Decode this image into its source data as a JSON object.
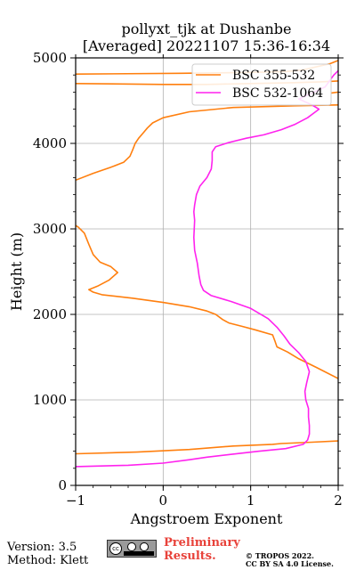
{
  "chart_data": {
    "type": "line",
    "title": [
      "pollyxt_tjk at Dushanbe",
      "[Averaged] 20221107 15:36-16:34"
    ],
    "xlabel": "Angstroem Exponent",
    "ylabel": "Height (m)",
    "xlim": [
      -1,
      2
    ],
    "ylim": [
      0,
      5000
    ],
    "xticks": [
      -1,
      0,
      1,
      2
    ],
    "yticks": [
      0,
      1000,
      2000,
      3000,
      4000,
      5000
    ],
    "grid": true,
    "legend_position": "top-right",
    "series": [
      {
        "name": "BSC 355-532",
        "color": "#ff7f0e",
        "points": [
          [
            -1.0,
            370
          ],
          [
            -0.3,
            390
          ],
          [
            0.3,
            420
          ],
          [
            0.8,
            460
          ],
          [
            1.25,
            480
          ],
          [
            1.35,
            490
          ],
          [
            1.7,
            505
          ],
          [
            2.0,
            520
          ],
          null,
          [
            2.0,
            1250
          ],
          [
            1.75,
            1380
          ],
          [
            1.55,
            1480
          ],
          [
            1.42,
            1560
          ],
          [
            1.3,
            1620
          ],
          [
            1.28,
            1680
          ],
          [
            1.25,
            1760
          ],
          [
            1.05,
            1820
          ],
          [
            0.9,
            1860
          ],
          [
            0.75,
            1900
          ],
          [
            0.68,
            1940
          ],
          [
            0.6,
            2000
          ],
          [
            0.5,
            2040
          ],
          [
            0.3,
            2090
          ],
          [
            0.0,
            2140
          ],
          [
            -0.35,
            2190
          ],
          [
            -0.7,
            2230
          ],
          [
            -0.8,
            2260
          ],
          [
            -0.85,
            2290
          ],
          [
            -0.75,
            2330
          ],
          [
            -0.62,
            2400
          ],
          [
            -0.52,
            2490
          ],
          [
            -0.6,
            2560
          ],
          [
            -0.72,
            2610
          ],
          [
            -0.8,
            2700
          ],
          [
            -0.85,
            2820
          ],
          [
            -0.9,
            2950
          ],
          [
            -0.97,
            3020
          ],
          [
            -1.0,
            3040
          ],
          null,
          [
            -1.0,
            3570
          ],
          [
            -0.8,
            3650
          ],
          [
            -0.6,
            3720
          ],
          [
            -0.45,
            3780
          ],
          [
            -0.38,
            3850
          ],
          [
            -0.35,
            3920
          ],
          [
            -0.32,
            4000
          ],
          [
            -0.28,
            4060
          ],
          [
            -0.23,
            4120
          ],
          [
            -0.18,
            4180
          ],
          [
            -0.12,
            4240
          ],
          [
            0.0,
            4300
          ],
          [
            0.3,
            4370
          ],
          [
            0.8,
            4420
          ],
          [
            1.5,
            4440
          ],
          [
            2.0,
            4450
          ],
          null,
          [
            1.92,
            4590
          ],
          [
            2.0,
            4600
          ],
          null,
          [
            -1.0,
            4700
          ],
          [
            0.0,
            4690
          ],
          [
            0.5,
            4690
          ],
          [
            1.0,
            4700
          ],
          [
            1.5,
            4710
          ],
          [
            1.8,
            4720
          ],
          [
            2.0,
            4730
          ],
          null,
          [
            -1.0,
            4810
          ],
          [
            0.2,
            4820
          ],
          [
            0.6,
            4825
          ],
          [
            1.0,
            4830
          ],
          [
            1.4,
            4840
          ],
          [
            1.6,
            4860
          ],
          [
            1.9,
            4930
          ],
          [
            2.0,
            4970
          ]
        ]
      },
      {
        "name": "BSC 532-1064",
        "color": "#ff22ee",
        "points": [
          [
            -1.0,
            220
          ],
          [
            -0.4,
            235
          ],
          [
            0.0,
            260
          ],
          [
            0.3,
            300
          ],
          [
            0.5,
            330
          ],
          [
            0.75,
            360
          ],
          [
            1.1,
            400
          ],
          [
            1.4,
            430
          ],
          [
            1.6,
            480
          ],
          [
            1.65,
            530
          ],
          [
            1.67,
            600
          ],
          [
            1.67,
            700
          ],
          [
            1.66,
            800
          ],
          [
            1.66,
            900
          ],
          [
            1.63,
            1000
          ],
          [
            1.62,
            1100
          ],
          [
            1.64,
            1200
          ],
          [
            1.67,
            1330
          ],
          [
            1.63,
            1450
          ],
          [
            1.55,
            1550
          ],
          [
            1.45,
            1650
          ],
          [
            1.38,
            1750
          ],
          [
            1.3,
            1850
          ],
          [
            1.2,
            1950
          ],
          [
            1.0,
            2070
          ],
          [
            0.78,
            2150
          ],
          [
            0.55,
            2220
          ],
          [
            0.46,
            2280
          ],
          [
            0.43,
            2350
          ],
          [
            0.41,
            2450
          ],
          [
            0.39,
            2600
          ],
          [
            0.36,
            2750
          ],
          [
            0.35,
            2900
          ],
          [
            0.36,
            3100
          ],
          [
            0.35,
            3200
          ],
          [
            0.36,
            3280
          ],
          [
            0.38,
            3400
          ],
          [
            0.42,
            3500
          ],
          [
            0.5,
            3600
          ],
          [
            0.55,
            3700
          ],
          [
            0.56,
            3800
          ],
          [
            0.56,
            3900
          ],
          [
            0.6,
            3960
          ],
          [
            0.75,
            4010
          ],
          [
            0.95,
            4060
          ],
          [
            1.15,
            4100
          ],
          [
            1.35,
            4160
          ],
          [
            1.5,
            4220
          ],
          [
            1.65,
            4300
          ],
          [
            1.78,
            4400
          ],
          [
            1.7,
            4450
          ],
          [
            1.55,
            4520
          ],
          [
            1.85,
            4660
          ],
          [
            1.95,
            4800
          ],
          [
            2.0,
            4850
          ]
        ]
      }
    ]
  },
  "footer": {
    "version": "Version: 3.5",
    "method": "Method: Klett",
    "preliminary_line1": "Preliminary",
    "preliminary_line2": "Results.",
    "copyright_line1": "© TROPOS 2022.",
    "copyright_line2": "CC BY SA 4.0 License.",
    "license_badge_icon": "cc-by-sa-badge-icon",
    "preliminary_color": "#e8423a"
  }
}
